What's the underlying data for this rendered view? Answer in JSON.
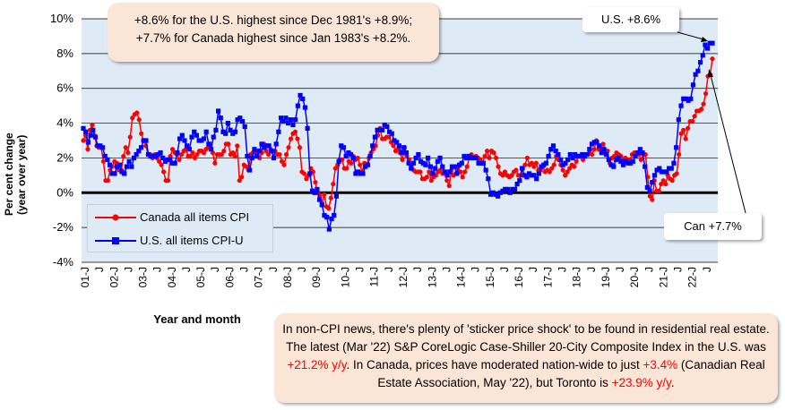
{
  "chart_data": {
    "type": "line",
    "ylabel": "Per cent change\n(year over year)",
    "xlabel": "Year and month",
    "ylim": [
      -4,
      10
    ],
    "yticks": [
      "-4%",
      "-2%",
      "0%",
      "2%",
      "4%",
      "6%",
      "8%",
      "10%"
    ],
    "xticks": [
      "01-J",
      "J",
      "02-J",
      "J",
      "03-J",
      "J",
      "04-J",
      "J",
      "05-J",
      "J",
      "06-J",
      "J",
      "07-J",
      "J",
      "08-J",
      "J",
      "09-J",
      "J",
      "10-J",
      "J",
      "11-J",
      "J",
      "12-J",
      "J",
      "13-J",
      "J",
      "14-J",
      "J",
      "15-J",
      "J",
      "16-J",
      "J",
      "17-J",
      "J",
      "18-J",
      "J",
      "19-J",
      "J",
      "20-J",
      "J",
      "21-J",
      "J",
      "22-J",
      "J"
    ],
    "grid": "horizontal",
    "legend_position": "lower-left",
    "series": [
      {
        "name": "Canada all items CPI",
        "color": "#ff0000",
        "marker": "circle",
        "values": [
          3.0,
          3.3,
          2.5,
          3.6,
          3.9,
          3.3,
          2.7,
          2.6,
          2.6,
          1.8,
          0.7,
          0.7,
          1.3,
          1.5,
          1.8,
          1.7,
          1.3,
          1.3,
          2.1,
          2.6,
          2.3,
          3.2,
          4.3,
          4.5,
          4.6,
          4.2,
          3.4,
          3.0,
          2.7,
          2.2,
          2.2,
          2.0,
          2.2,
          2.0,
          1.8,
          1.6,
          1.2,
          0.7,
          0.7,
          2.1,
          2.5,
          2.3,
          2.2,
          1.9,
          2.2,
          2.4,
          2.5,
          2.1,
          2.1,
          2.3,
          2.0,
          2.2,
          2.4,
          2.4,
          2.3,
          2.5,
          2.6,
          2.8,
          2.3,
          1.7,
          2.2,
          2.2,
          2.2,
          2.4,
          2.8,
          2.8,
          2.2,
          2.3,
          2.1,
          2.7,
          0.7,
          0.9,
          1.6,
          1.5,
          1.3,
          2.2,
          2.3,
          2.4,
          2.2,
          2.0,
          2.3,
          2.8,
          2.4,
          2.2,
          2.5,
          2.4,
          2.4,
          2.2,
          2.2,
          1.8,
          1.6,
          2.2,
          2.6,
          3.1,
          3.4,
          3.5,
          3.1,
          2.6,
          1.2,
          1.1,
          0.8,
          1.0,
          1.4,
          1.2,
          0.6,
          0.0,
          -0.2,
          -0.6,
          -0.1,
          -0.8,
          -0.9,
          -0.3,
          0.5,
          1.4,
          1.6,
          1.9,
          1.9,
          1.4,
          1.4,
          1.8,
          1.7,
          2.1,
          1.9,
          2.0,
          1.6,
          1.2,
          1.7,
          1.6,
          2.0,
          2.3,
          2.5,
          2.7,
          3.3,
          3.7,
          3.1,
          3.1,
          3.2,
          3.2,
          2.9,
          2.7,
          2.4,
          2.5,
          2.3,
          1.9,
          2.6,
          2.1,
          1.9,
          1.5,
          1.3,
          1.2,
          1.2,
          1.2,
          0.8,
          0.8,
          0.9,
          1.2,
          0.7,
          0.9,
          1.0,
          1.2,
          1.3,
          1.1,
          1.1,
          0.7,
          0.4,
          1.3,
          1.0,
          1.1,
          1.5,
          1.2,
          0.9,
          1.2,
          1.5,
          2.0,
          2.2,
          2.0,
          2.1,
          2.0,
          1.9,
          1.7,
          2.1,
          2.4,
          2.0,
          2.4,
          2.3,
          2.0,
          1.5,
          1.1,
          1.0,
          1.2,
          1.0,
          0.9,
          1.0,
          1.2,
          1.3,
          1.0,
          1.0,
          1.4,
          1.6,
          2.0,
          1.6,
          1.7,
          1.5,
          1.7,
          1.3,
          1.3,
          1.5,
          1.2,
          1.3,
          1.2,
          1.4,
          1.6,
          2.1,
          1.9,
          1.6,
          1.3,
          1.0,
          1.2,
          1.4,
          1.6,
          1.5,
          1.8,
          2.1,
          2.1,
          1.9,
          2.2,
          2.2,
          2.3,
          2.2,
          2.5,
          3.0,
          2.5,
          2.5,
          2.8,
          2.4,
          2.4,
          1.7,
          2.0,
          2.1,
          2.3,
          2.2,
          2.1,
          1.9,
          2.0,
          1.9,
          1.9,
          2.2,
          2.3,
          2.2,
          2.2,
          1.9,
          2.2,
          2.2,
          0.9,
          -0.2,
          -0.4,
          0.7,
          0.1,
          0.1,
          0.5,
          0.7,
          0.5,
          1.0,
          0.8,
          0.7,
          1.0,
          1.1,
          2.2,
          3.4,
          3.6,
          3.1,
          3.7,
          4.1,
          4.1,
          4.4,
          4.7,
          4.7,
          4.8,
          5.1,
          5.7,
          6.7,
          6.8,
          7.7
        ]
      },
      {
        "name": "U.S. all items CPI-U",
        "color": "#0000ff",
        "marker": "square",
        "values": [
          3.7,
          3.5,
          2.9,
          3.3,
          3.6,
          3.2,
          2.7,
          2.7,
          2.6,
          2.1,
          1.9,
          1.6,
          1.1,
          1.1,
          1.5,
          1.6,
          1.2,
          1.1,
          1.5,
          1.8,
          1.5,
          2.0,
          2.2,
          2.4,
          2.6,
          3.0,
          3.0,
          2.2,
          2.1,
          2.1,
          2.1,
          2.2,
          2.3,
          2.0,
          1.8,
          1.9,
          1.9,
          1.7,
          1.7,
          2.3,
          3.1,
          3.3,
          3.0,
          2.7,
          2.5,
          3.2,
          3.5,
          3.3,
          3.0,
          3.0,
          3.1,
          3.5,
          2.8,
          2.5,
          3.2,
          3.6,
          4.7,
          4.3,
          3.5,
          3.4,
          4.0,
          3.6,
          3.4,
          3.5,
          4.2,
          4.3,
          4.1,
          3.8,
          2.1,
          1.3,
          2.0,
          2.5,
          2.1,
          2.4,
          2.8,
          2.6,
          2.7,
          2.7,
          2.4,
          2.0,
          2.8,
          3.5,
          4.3,
          4.1,
          4.3,
          4.0,
          4.2,
          3.9,
          4.2,
          5.0,
          5.6,
          5.4,
          4.9,
          3.7,
          1.1,
          0.1,
          0.0,
          0.2,
          -0.4,
          -0.7,
          -1.3,
          -1.4,
          -2.1,
          -1.5,
          -1.3,
          -0.2,
          1.8,
          2.7,
          2.6,
          2.1,
          2.3,
          2.2,
          2.0,
          1.1,
          1.2,
          1.1,
          1.1,
          1.5,
          1.6,
          2.1,
          2.7,
          3.2,
          3.6,
          3.6,
          3.6,
          3.9,
          3.8,
          3.5,
          3.4,
          3.0,
          2.9,
          2.7,
          2.3,
          2.6,
          2.3,
          1.7,
          1.4,
          1.7,
          2.0,
          2.2,
          1.8,
          1.7,
          1.6,
          2.0,
          1.5,
          1.1,
          1.4,
          1.8,
          2.0,
          1.5,
          1.2,
          1.0,
          1.2,
          1.5,
          1.5,
          1.1,
          1.6,
          1.7,
          2.1,
          2.0,
          2.1,
          2.0,
          2.0,
          2.0,
          1.7,
          1.7,
          1.7,
          1.3,
          0.8,
          -0.1,
          0.0,
          -0.1,
          -0.2,
          0.0,
          0.1,
          0.2,
          0.2,
          0.0,
          0.2,
          0.2,
          0.5,
          0.7,
          1.4,
          1.0,
          0.9,
          1.1,
          1.0,
          1.0,
          0.8,
          1.1,
          1.5,
          1.6,
          1.7,
          2.1,
          2.5,
          2.7,
          2.4,
          2.2,
          1.9,
          1.6,
          1.7,
          1.9,
          2.2,
          2.0,
          2.2,
          2.1,
          2.1,
          2.2,
          2.1,
          2.2,
          2.5,
          2.8,
          2.9,
          2.9,
          2.7,
          2.3,
          2.5,
          2.2,
          1.9,
          1.6,
          1.5,
          1.9,
          2.0,
          1.8,
          1.6,
          1.8,
          1.7,
          1.7,
          1.8,
          2.1,
          2.3,
          2.5,
          2.3,
          1.5,
          0.3,
          0.1,
          0.6,
          1.0,
          1.3,
          1.4,
          1.2,
          1.2,
          1.2,
          1.4,
          1.4,
          1.7,
          2.6,
          4.2,
          5.0,
          5.4,
          5.4,
          5.3,
          5.4,
          6.2,
          6.8,
          7.0,
          7.5,
          7.9,
          8.5,
          8.3,
          8.6,
          8.6
        ]
      }
    ]
  },
  "annotations": {
    "top_note_line1": "+8.6% for the U.S. highest since Dec 1981's +8.9%;",
    "top_note_line2": "+7.7% for Canada highest since Jan 1983's +8.2%.",
    "us_callout": "U.S. +8.6%",
    "can_callout": "Can +7.7%",
    "bottom_note": {
      "p1": "In non-CPI news, there's plenty of 'sticker price shock' to be found in residential real estate. The latest (Mar '22) S&P CoreLogic Case-Shiller 20-City Composite Index in the U.S. was ",
      "r1": "+21.2% y/y",
      "p2": ". In Canada, prices have moderated nation-wide to just ",
      "r2": "+3.4%",
      "p3": " (Canadian Real Estate Association, May '22), but Toronto is ",
      "r3": "+23.9% y/y",
      "p4": "."
    }
  },
  "legend": {
    "canada_label": "Canada all items CPI",
    "us_label": "U.S. all items CPI-U"
  }
}
